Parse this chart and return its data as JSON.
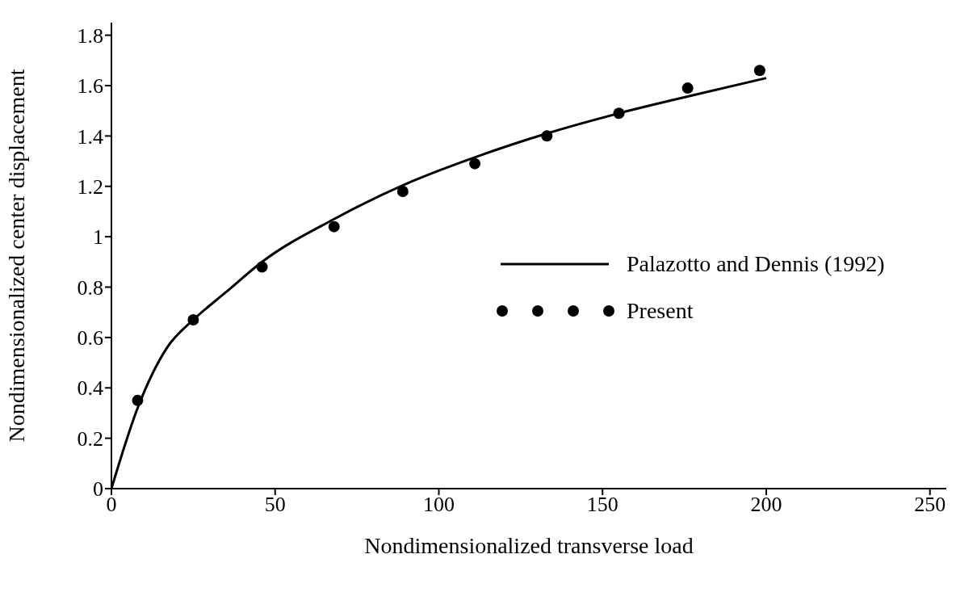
{
  "chart_data": {
    "type": "line",
    "xlabel": "Nondimensionalized transverse load",
    "ylabel": "Nondimensionalized center displacement",
    "xlim": [
      0,
      255
    ],
    "xticks": [
      0,
      50,
      100,
      150,
      200,
      250
    ],
    "ylim": [
      0,
      1.85
    ],
    "yticks": [
      0,
      0.2,
      0.4,
      0.6,
      0.8,
      1,
      1.2,
      1.4,
      1.6,
      1.8
    ],
    "grid": false,
    "legend": "right",
    "series": [
      {
        "name": "Palazotto and Dennis (1992)",
        "color": "#000000",
        "marker": "none",
        "line_style": "solid",
        "x": [
          0,
          8,
          17,
          25,
          35,
          46,
          68,
          90,
          112,
          133,
          155,
          177,
          200
        ],
        "values": [
          0,
          0.32,
          0.56,
          0.67,
          0.78,
          0.9,
          1.07,
          1.21,
          1.32,
          1.41,
          1.49,
          1.56,
          1.63
        ]
      },
      {
        "name": "Present",
        "type": "scatter",
        "color": "#000000",
        "marker": "circle",
        "x": [
          8,
          25,
          46,
          68,
          89,
          111,
          133,
          155,
          176,
          198
        ],
        "values": [
          0.35,
          0.67,
          0.88,
          1.04,
          1.18,
          1.29,
          1.4,
          1.49,
          1.59,
          1.66
        ]
      }
    ]
  }
}
